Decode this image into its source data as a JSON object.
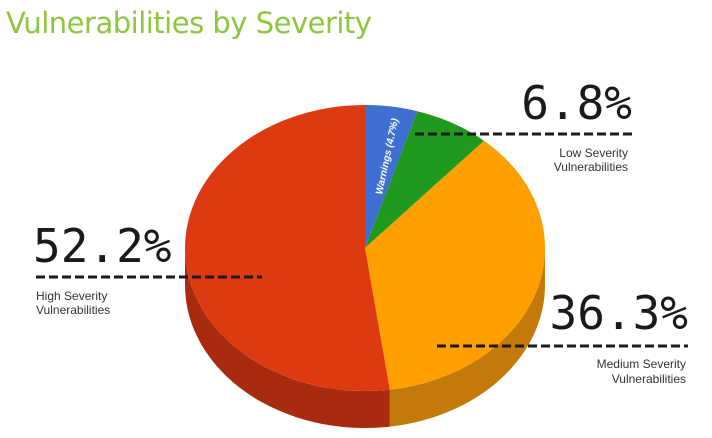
{
  "page": {
    "title": "Vulnerabilities by Severity"
  },
  "chart_data": {
    "type": "pie",
    "title": "Vulnerabilities by Severity",
    "slices": [
      {
        "label": "Warnings",
        "value": 4.7,
        "color": "#3f6fd0",
        "side_color": "#2c509b",
        "inside_label": "Warnings (4.7%)"
      },
      {
        "label": "Low Severity Vulnerabilities",
        "value": 6.8,
        "color": "#1f9a1f",
        "side_color": "#157015",
        "pct_text": "6.8%",
        "caption": [
          "Low Severity",
          "Vulnerabilities"
        ]
      },
      {
        "label": "Medium Severity Vulnerabilities",
        "value": 36.3,
        "color": "#ff9f00",
        "side_color": "#c47a08",
        "pct_text": "36.3%",
        "caption": [
          "Medium Severity",
          "Vulnerabilities"
        ]
      },
      {
        "label": "High Severity Vulnerabilities",
        "value": 52.2,
        "color": "#dd3a12",
        "side_color": "#a82b10",
        "pct_text": "52.2%",
        "caption": [
          "High Severity",
          "Vulnerabilities"
        ]
      }
    ]
  }
}
